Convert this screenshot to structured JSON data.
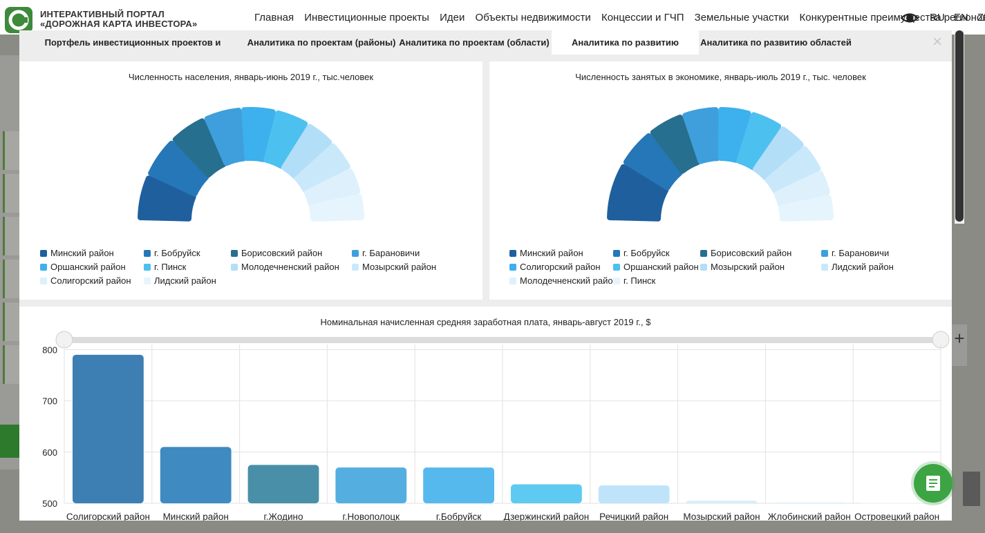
{
  "header": {
    "logo_line1": "ИНТЕРАКТИВНЫЙ ПОРТАЛ",
    "logo_line2": "«ДОРОЖНАЯ КАРТА ИНВЕСТОРА»",
    "nav": [
      "Главная",
      "Инвестиционные проекты",
      "Идеи",
      "Объекты недвижимости",
      "Концессии и ГЧП",
      "Земельные участки",
      "Конкурентные преимущества регионов"
    ],
    "langs": [
      "RU",
      "EN",
      "ZH"
    ]
  },
  "tabs": [
    {
      "label": "Портфель инвестиционных проектов и предложений",
      "active": false
    },
    {
      "label": "Аналитика по проектам (районы)",
      "active": false
    },
    {
      "label": "Аналитика по проектам (области)",
      "active": false
    },
    {
      "label": "Аналитика по развитию районов",
      "active": true
    },
    {
      "label": "Аналитика по развитию областей",
      "active": false
    }
  ],
  "close_label": "×",
  "colors": [
    "#1f5f9e",
    "#2677b8",
    "#276f8f",
    "#3e9fdc",
    "#3db0ee",
    "#4cc1f0",
    "#b2def8",
    "#c9e9fb",
    "#ddf0fc",
    "#e6f4fd"
  ],
  "chart_data": [
    {
      "type": "pie",
      "title": "Численность населения, январь-июнь 2019 г., тыс.человек",
      "legend": [
        "Минский район",
        "г. Бобруйск",
        "Борисовский район",
        "г. Барановичи",
        "Оршанский район",
        "г. Пинск",
        "Молодечненский район",
        "Мозырский район",
        "Солигорский район",
        "Лидский район"
      ],
      "values": [
        12,
        11,
        10,
        10,
        9,
        9,
        8,
        8,
        7,
        7
      ]
    },
    {
      "type": "pie",
      "title": "Численность занятых в экономике, январь-июль 2019 г., тыс. человек",
      "legend": [
        "Минский район",
        "г. Бобруйск",
        "Борисовский район",
        "г. Барановичи",
        "Солигорский район",
        "Оршанский район",
        "Мозырский район",
        "Лидский район",
        "Молодечненский район",
        "г. Пинск"
      ],
      "values": [
        16,
        11,
        10,
        10,
        9,
        9,
        8,
        8,
        7,
        7
      ]
    },
    {
      "type": "bar",
      "title": "Номинальная начисленная средняя заработная плата, январь-август 2019 г., $",
      "categories": [
        "Солигорский район",
        "Минский район",
        "г.Жодино",
        "г.Новополоцк",
        "г.Бобруйск",
        "Дзержинский район",
        "Речицкий район",
        "Мозырский район",
        "Жлобинский район",
        "Островецкий район"
      ],
      "values": [
        790,
        610,
        575,
        570,
        570,
        537,
        535,
        505,
        502,
        501
      ],
      "yticks": [
        500,
        600,
        700,
        800
      ],
      "ylim": [
        500,
        810
      ],
      "bar_colors": [
        "#3d7fb3",
        "#3f8bc1",
        "#4a8fa8",
        "#55aee0",
        "#56b9ee",
        "#5ecaf2",
        "#bfe4fa",
        "#d7eefc",
        "#e3f3fd",
        "#eaf6fd"
      ]
    }
  ]
}
